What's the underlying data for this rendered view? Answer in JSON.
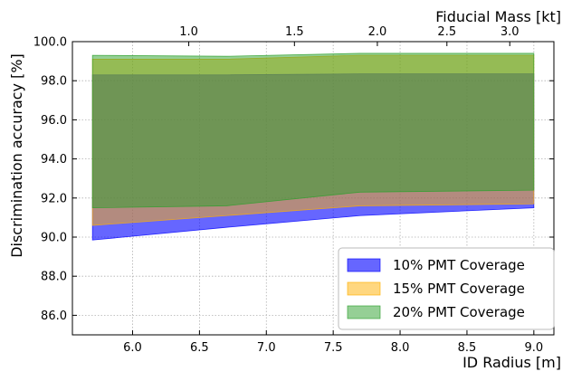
{
  "chart_data": {
    "type": "area",
    "xlabel": "ID Radius [m]",
    "ylabel": "Discrimination accuracy [%]",
    "x2label": "Fiducial Mass [kt]",
    "xlim": [
      5.55,
      9.15
    ],
    "ylim": [
      85.0,
      100.0
    ],
    "xticks": [
      6.0,
      6.5,
      7.0,
      7.5,
      8.0,
      8.5,
      9.0
    ],
    "xtick_labels": [
      "6.0",
      "6.5",
      "7.0",
      "7.5",
      "8.0",
      "8.5",
      "9.0"
    ],
    "yticks": [
      86,
      88,
      90,
      92,
      94,
      96,
      98,
      100
    ],
    "ytick_labels": [
      "86.0",
      "88.0",
      "90.0",
      "92.0",
      "94.0",
      "96.0",
      "98.0",
      "100.0"
    ],
    "top_ticks": [
      {
        "label": "1.0",
        "radius": 6.42
      },
      {
        "label": "1.5",
        "radius": 7.21
      },
      {
        "label": "2.0",
        "radius": 7.83
      },
      {
        "label": "2.5",
        "radius": 8.35
      },
      {
        "label": "3.0",
        "radius": 8.82
      }
    ],
    "grid": true,
    "legend_position": "lower-right",
    "x": [
      5.7,
      6.7,
      7.7,
      9.0
    ],
    "series": [
      {
        "name": "10% PMT Coverage",
        "color": "#0000ff",
        "alpha": 0.6,
        "lower": [
          89.85,
          90.5,
          91.1,
          91.5
        ],
        "upper": [
          98.3,
          98.3,
          98.35,
          98.35
        ]
      },
      {
        "name": "15% PMT Coverage",
        "color": "#ffb000",
        "alpha": 0.5,
        "lower": [
          90.6,
          91.1,
          91.6,
          91.7
        ],
        "upper": [
          99.1,
          99.1,
          99.3,
          99.3
        ]
      },
      {
        "name": "20% PMT Coverage",
        "color": "#2ca02c",
        "alpha": 0.5,
        "lower": [
          91.5,
          91.6,
          92.3,
          92.4
        ],
        "upper": [
          99.3,
          99.25,
          99.4,
          99.4
        ]
      }
    ]
  }
}
